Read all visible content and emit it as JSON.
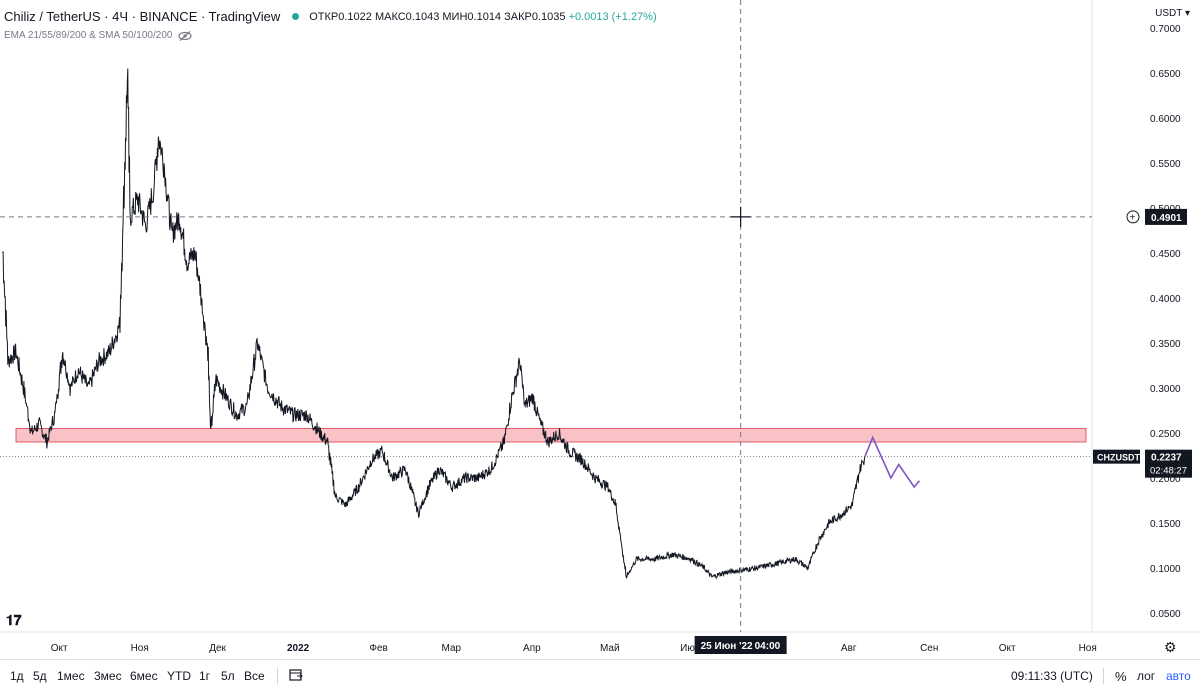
{
  "header": {
    "symbol": "Chiliz / TetherUS · 4Ч · BINANCE · TradingView",
    "open": "ОТКР0.1022",
    "high": "МАКС0.1043",
    "low": "МИН0.1014",
    "close": "ЗАКР0.1035",
    "change": "+0.0013 (+1.27%)",
    "indicators": "EMA 21/55/89/200 & SMA 50/100/200"
  },
  "currency": "USDT",
  "crosshair_price": "0.4901",
  "crosshair_date": "25 Июн '22",
  "crosshair_time": "04:00",
  "ticker_tag": "CHZUSDT",
  "last_price": "0.2237",
  "countdown": "02:48:27",
  "colors": {
    "line": "#131722",
    "zone_fill": "#f9bcc2",
    "zone_stroke": "#e04b5a",
    "forecast": "#7e57c2",
    "up": "#26a69a"
  },
  "toolbar": {
    "ranges": [
      "1д",
      "5д",
      "1мес",
      "3мес",
      "6мес",
      "YTD",
      "1г",
      "5л",
      "Все"
    ],
    "clock": "09:11:33 (UTC)",
    "percent": "%",
    "log": "лог",
    "auto": "авто"
  },
  "chart_data": {
    "type": "line",
    "y_axis": {
      "min": 0.05,
      "max": 0.7,
      "ticks": [
        "0.7000",
        "0.6500",
        "0.6000",
        "0.5500",
        "0.5000",
        "0.4500",
        "0.4000",
        "0.3500",
        "0.3000",
        "0.2500",
        "0.2000",
        "0.1500",
        "0.1000",
        "0.0500"
      ]
    },
    "x_axis": {
      "ticks": [
        "Окт",
        "Ноя",
        "Дек",
        "2022",
        "Фев",
        "Мар",
        "Апр",
        "Май",
        "Июн",
        "Авг",
        "Сен",
        "Окт",
        "Ноя"
      ]
    },
    "series": [
      {
        "points": [
          [
            "2021-09-15",
            0.45
          ],
          [
            "2021-09-17",
            0.33
          ],
          [
            "2021-09-20",
            0.34
          ],
          [
            "2021-09-23",
            0.3
          ],
          [
            "2021-09-26",
            0.25
          ],
          [
            "2021-09-29",
            0.26
          ],
          [
            "2021-10-02",
            0.24
          ],
          [
            "2021-10-05",
            0.27
          ],
          [
            "2021-10-08",
            0.34
          ],
          [
            "2021-10-11",
            0.3
          ],
          [
            "2021-10-14",
            0.32
          ],
          [
            "2021-10-18",
            0.3
          ],
          [
            "2021-10-22",
            0.33
          ],
          [
            "2021-10-26",
            0.34
          ],
          [
            "2021-10-30",
            0.37
          ],
          [
            "2021-11-01",
            0.55
          ],
          [
            "2021-11-02",
            0.65
          ],
          [
            "2021-11-03",
            0.49
          ],
          [
            "2021-11-06",
            0.51
          ],
          [
            "2021-11-09",
            0.48
          ],
          [
            "2021-11-12",
            0.52
          ],
          [
            "2021-11-14",
            0.58
          ],
          [
            "2021-11-16",
            0.55
          ],
          [
            "2021-11-19",
            0.47
          ],
          [
            "2021-11-22",
            0.49
          ],
          [
            "2021-11-25",
            0.44
          ],
          [
            "2021-11-28",
            0.45
          ],
          [
            "2021-11-30",
            0.41
          ],
          [
            "2021-12-03",
            0.34
          ],
          [
            "2021-12-04",
            0.25
          ],
          [
            "2021-12-06",
            0.31
          ],
          [
            "2021-12-10",
            0.29
          ],
          [
            "2021-12-14",
            0.27
          ],
          [
            "2021-12-18",
            0.28
          ],
          [
            "2021-12-22",
            0.35
          ],
          [
            "2021-12-26",
            0.3
          ],
          [
            "2021-12-31",
            0.28
          ],
          [
            "2022-01-05",
            0.27
          ],
          [
            "2022-01-10",
            0.27
          ],
          [
            "2022-01-15",
            0.25
          ],
          [
            "2022-01-18",
            0.24
          ],
          [
            "2022-01-21",
            0.18
          ],
          [
            "2022-01-25",
            0.17
          ],
          [
            "2022-01-30",
            0.19
          ],
          [
            "2022-02-04",
            0.22
          ],
          [
            "2022-02-08",
            0.23
          ],
          [
            "2022-02-12",
            0.2
          ],
          [
            "2022-02-17",
            0.21
          ],
          [
            "2022-02-22",
            0.16
          ],
          [
            "2022-02-26",
            0.19
          ],
          [
            "2022-03-02",
            0.21
          ],
          [
            "2022-03-07",
            0.19
          ],
          [
            "2022-03-12",
            0.2
          ],
          [
            "2022-03-17",
            0.2
          ],
          [
            "2022-03-22",
            0.21
          ],
          [
            "2022-03-27",
            0.24
          ],
          [
            "2022-03-30",
            0.29
          ],
          [
            "2022-04-02",
            0.33
          ],
          [
            "2022-04-04",
            0.28
          ],
          [
            "2022-04-07",
            0.29
          ],
          [
            "2022-04-10",
            0.26
          ],
          [
            "2022-04-13",
            0.24
          ],
          [
            "2022-04-17",
            0.25
          ],
          [
            "2022-04-21",
            0.23
          ],
          [
            "2022-04-26",
            0.22
          ],
          [
            "2022-05-01",
            0.2
          ],
          [
            "2022-05-06",
            0.19
          ],
          [
            "2022-05-09",
            0.17
          ],
          [
            "2022-05-11",
            0.13
          ],
          [
            "2022-05-13",
            0.09
          ],
          [
            "2022-05-17",
            0.11
          ],
          [
            "2022-05-24",
            0.11
          ],
          [
            "2022-05-31",
            0.115
          ],
          [
            "2022-06-07",
            0.11
          ],
          [
            "2022-06-12",
            0.1
          ],
          [
            "2022-06-15",
            0.09
          ],
          [
            "2022-06-20",
            0.095
          ],
          [
            "2022-06-25",
            0.097
          ],
          [
            "2022-07-02",
            0.1
          ],
          [
            "2022-07-10",
            0.105
          ],
          [
            "2022-07-17",
            0.11
          ],
          [
            "2022-07-22",
            0.1
          ],
          [
            "2022-07-26",
            0.13
          ],
          [
            "2022-07-30",
            0.15
          ],
          [
            "2022-08-04",
            0.16
          ],
          [
            "2022-08-08",
            0.17
          ],
          [
            "2022-08-11",
            0.21
          ],
          [
            "2022-08-13",
            0.2237
          ]
        ]
      }
    ],
    "annotations": {
      "resistance_zone": [
        0.24,
        0.255
      ],
      "forecast_path": [
        [
          "2022-08-13",
          0.2237
        ],
        [
          "2022-08-16",
          0.245
        ],
        [
          "2022-08-23",
          0.2
        ],
        [
          "2022-08-26",
          0.215
        ],
        [
          "2022-09-01",
          0.19
        ],
        [
          "2022-09-03",
          0.197
        ]
      ]
    }
  }
}
